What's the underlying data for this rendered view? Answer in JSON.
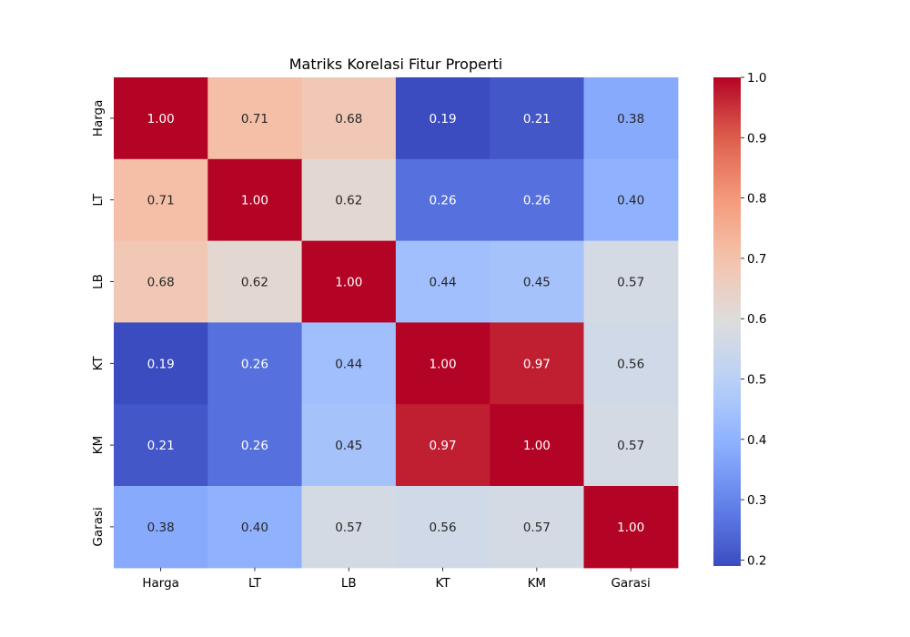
{
  "chart_data": {
    "type": "heatmap",
    "title": "Matriks Korelasi Fitur Properti",
    "xlabel": "",
    "ylabel": "",
    "x_labels": [
      "Harga",
      "LT",
      "LB",
      "KT",
      "KM",
      "Garasi"
    ],
    "y_labels": [
      "Harga",
      "LT",
      "LB",
      "KT",
      "KM",
      "Garasi"
    ],
    "values": [
      [
        1.0,
        0.71,
        0.68,
        0.19,
        0.21,
        0.38
      ],
      [
        0.71,
        1.0,
        0.62,
        0.26,
        0.26,
        0.4
      ],
      [
        0.68,
        0.62,
        1.0,
        0.44,
        0.45,
        0.57
      ],
      [
        0.19,
        0.26,
        0.44,
        1.0,
        0.97,
        0.56
      ],
      [
        0.21,
        0.26,
        0.45,
        0.97,
        1.0,
        0.57
      ],
      [
        0.38,
        0.4,
        0.57,
        0.56,
        0.57,
        1.0
      ]
    ],
    "value_format": "0.00",
    "colormap": "coolwarm",
    "colorbar": {
      "range": [
        0.19,
        1.0
      ],
      "ticks": [
        0.2,
        0.3,
        0.4,
        0.5,
        0.6,
        0.7,
        0.8,
        0.9,
        1.0
      ],
      "tick_labels": [
        "0.2",
        "0.3",
        "0.4",
        "0.5",
        "0.6",
        "0.7",
        "0.8",
        "0.9",
        "1.0"
      ]
    },
    "grid": false
  }
}
